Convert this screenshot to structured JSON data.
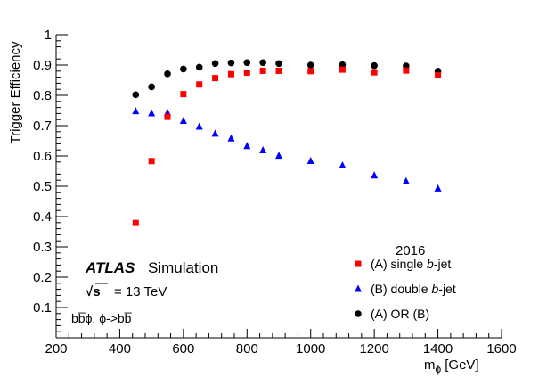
{
  "chart_data": {
    "type": "scatter",
    "xlabel": "m",
    "xlabel_symbol": "ϕ",
    "xlabel_unit": "[GeV]",
    "ylabel": "Trigger Efficiency",
    "xlim": [
      200,
      1600
    ],
    "ylim": [
      0,
      1
    ],
    "x_ticks": [
      200,
      400,
      600,
      800,
      1000,
      1200,
      1400,
      1600
    ],
    "y_ticks": [
      0.1,
      0.2,
      0.3,
      0.4,
      0.5,
      0.6,
      0.7,
      0.8,
      0.9,
      1
    ],
    "y_tick_labels": [
      "0.1",
      "0.2",
      "0.3",
      "0.4",
      "0.5",
      "0.6",
      "0.7",
      "0.8",
      "0.9",
      "1"
    ],
    "x": [
      450,
      500,
      550,
      600,
      650,
      700,
      750,
      800,
      850,
      900,
      1000,
      1100,
      1200,
      1300,
      1400
    ],
    "series": [
      {
        "name": "(A) single b-jet",
        "label_prefix": "(A) single ",
        "label_italic": "b",
        "label_suffix": "-jet",
        "marker": "square",
        "color": "#ff0000",
        "values": [
          0.379,
          0.583,
          0.729,
          0.804,
          0.836,
          0.857,
          0.87,
          0.875,
          0.881,
          0.881,
          0.88,
          0.885,
          0.876,
          0.882,
          0.866
        ]
      },
      {
        "name": "(B) double b-jet",
        "label_prefix": "(B) double ",
        "label_italic": "b",
        "label_suffix": "-jet",
        "marker": "triangle",
        "color": "#0000ff",
        "values": [
          0.748,
          0.741,
          0.743,
          0.716,
          0.697,
          0.674,
          0.658,
          0.633,
          0.619,
          0.601,
          0.584,
          0.569,
          0.536,
          0.517,
          0.493
        ]
      },
      {
        "name": "(A) OR (B)",
        "label_prefix": "(A) OR (B)",
        "label_italic": "",
        "label_suffix": "",
        "marker": "circle",
        "color": "#000000",
        "values": [
          0.802,
          0.828,
          0.871,
          0.887,
          0.893,
          0.905,
          0.907,
          0.908,
          0.908,
          0.905,
          0.9,
          0.901,
          0.898,
          0.897,
          0.88
        ]
      }
    ],
    "legend_title": "2016",
    "legend_position": "bottom-right",
    "annotations": {
      "experiment": "ATLAS",
      "label": "Simulation",
      "sqrt_symbol": "√",
      "sqrt_var": "s",
      "energy": "= 13 TeV",
      "process": "bb̅ϕ,  ϕ->bb̅"
    },
    "grid": false
  }
}
